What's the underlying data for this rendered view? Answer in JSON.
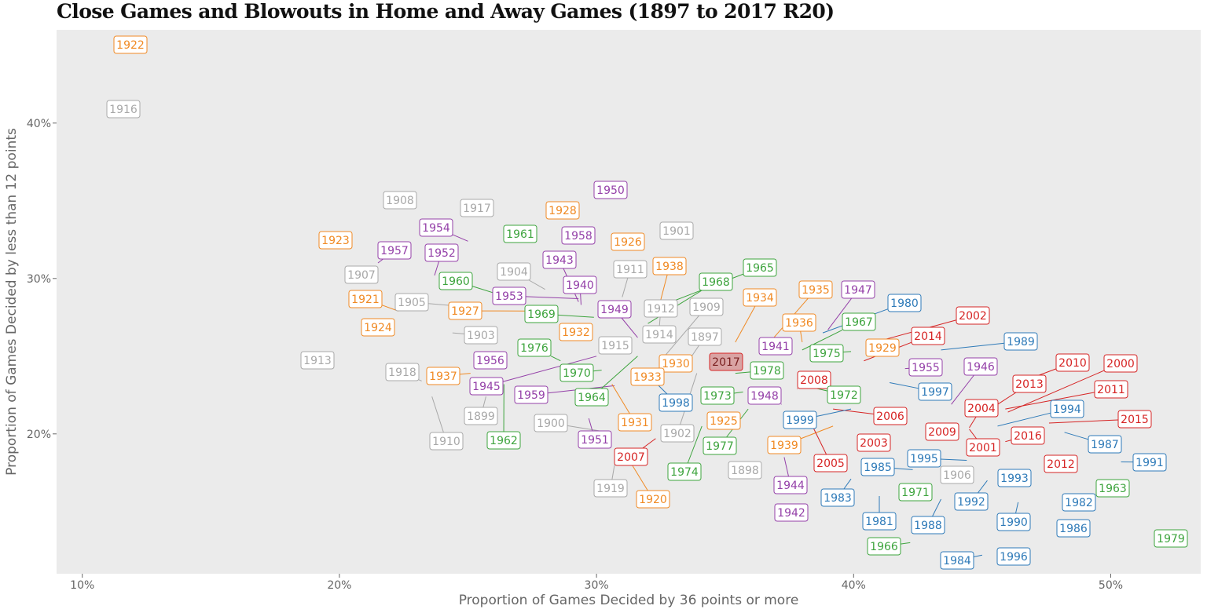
{
  "colors": {
    "panel_bg": "#ebebeb",
    "highlight_fill": "#d9a3a3",
    "eras": {
      "early": "#a8a8a8",
      "interwar": "#f08a24",
      "mid": "#9440a8",
      "sixties_seventies": "#3ea43e",
      "eighties_nineties": "#2e7ab8",
      "modern": "#d62424"
    }
  },
  "chart_data": {
    "type": "scatter",
    "title": "Close Games and Blowouts in Home and Away Games (1897 to 2017 R20)",
    "xlabel": "Proportion of Games Decided by 36 points or more",
    "ylabel": "Proportion of Games Decided by less than 12 points",
    "xlim": [
      0.09,
      0.535
    ],
    "ylim": [
      0.11,
      0.46
    ],
    "xticks": [
      0.1,
      0.2,
      0.3,
      0.4,
      0.5
    ],
    "xtick_labels": [
      "10%",
      "20%",
      "30%",
      "40%",
      "50%"
    ],
    "yticks": [
      0.2,
      0.3,
      0.4
    ],
    "ytick_labels": [
      "20%",
      "30%",
      "40%"
    ],
    "grid": false,
    "legend": "none",
    "highlight": "2017",
    "points": [
      {
        "label": "1922",
        "era": "interwar",
        "x": 0.12,
        "y": 0.45
      },
      {
        "label": "1916",
        "era": "early",
        "x": 0.117,
        "y": 0.409
      },
      {
        "label": "1908",
        "era": "early",
        "x": 0.224,
        "y": 0.352
      },
      {
        "label": "1917",
        "era": "early",
        "x": 0.254,
        "y": 0.346
      },
      {
        "label": "1928",
        "era": "interwar",
        "x": 0.288,
        "y": 0.344
      },
      {
        "label": "1950",
        "era": "mid",
        "x": 0.307,
        "y": 0.358
      },
      {
        "label": "1923",
        "era": "interwar",
        "x": 0.199,
        "y": 0.326
      },
      {
        "label": "1954",
        "era": "mid",
        "x": 0.25,
        "y": 0.324
      },
      {
        "label": "1961",
        "era": "sixties_seventies",
        "x": 0.277,
        "y": 0.33
      },
      {
        "label": "1958",
        "era": "mid",
        "x": 0.297,
        "y": 0.33
      },
      {
        "label": "1926",
        "era": "interwar",
        "x": 0.313,
        "y": 0.323
      },
      {
        "label": "1901",
        "era": "early",
        "x": 0.332,
        "y": 0.332
      },
      {
        "label": "1957",
        "era": "mid",
        "x": 0.215,
        "y": 0.31
      },
      {
        "label": "1952",
        "era": "mid",
        "x": 0.237,
        "y": 0.302
      },
      {
        "label": "1907",
        "era": "early",
        "x": 0.209,
        "y": 0.3
      },
      {
        "label": "1943",
        "era": "mid",
        "x": 0.293,
        "y": 0.285
      },
      {
        "label": "1904",
        "era": "early",
        "x": 0.28,
        "y": 0.293
      },
      {
        "label": "1911",
        "era": "early",
        "x": 0.31,
        "y": 0.288
      },
      {
        "label": "1938",
        "era": "interwar",
        "x": 0.324,
        "y": 0.28
      },
      {
        "label": "1965",
        "era": "sixties_seventies",
        "x": 0.326,
        "y": 0.283
      },
      {
        "label": "1960",
        "era": "sixties_seventies",
        "x": 0.271,
        "y": 0.285
      },
      {
        "label": "1940",
        "era": "mid",
        "x": 0.294,
        "y": 0.283
      },
      {
        "label": "1968",
        "era": "sixties_seventies",
        "x": 0.32,
        "y": 0.271
      },
      {
        "label": "1953",
        "era": "mid",
        "x": 0.293,
        "y": 0.287
      },
      {
        "label": "1921",
        "era": "interwar",
        "x": 0.223,
        "y": 0.279
      },
      {
        "label": "1905",
        "era": "early",
        "x": 0.248,
        "y": 0.282
      },
      {
        "label": "1927",
        "era": "interwar",
        "x": 0.281,
        "y": 0.279
      },
      {
        "label": "1969",
        "era": "sixties_seventies",
        "x": 0.299,
        "y": 0.275
      },
      {
        "label": "1949",
        "era": "mid",
        "x": 0.316,
        "y": 0.262
      },
      {
        "label": "1912",
        "era": "early",
        "x": 0.324,
        "y": 0.26
      },
      {
        "label": "1909",
        "era": "early",
        "x": 0.327,
        "y": 0.251
      },
      {
        "label": "1935",
        "era": "interwar",
        "x": 0.369,
        "y": 0.262
      },
      {
        "label": "1947",
        "era": "mid",
        "x": 0.39,
        "y": 0.267
      },
      {
        "label": "1934",
        "era": "interwar",
        "x": 0.354,
        "y": 0.259
      },
      {
        "label": "1980",
        "era": "eighties_nineties",
        "x": 0.388,
        "y": 0.265
      },
      {
        "label": "1924",
        "era": "interwar",
        "x": 0.214,
        "y": 0.274
      },
      {
        "label": "1903",
        "era": "early",
        "x": 0.244,
        "y": 0.265
      },
      {
        "label": "1932",
        "era": "interwar",
        "x": 0.291,
        "y": 0.267
      },
      {
        "label": "1914",
        "era": "early",
        "x": 0.322,
        "y": 0.255
      },
      {
        "label": "1897",
        "era": "early",
        "x": 0.335,
        "y": 0.245
      },
      {
        "label": "1936",
        "era": "interwar",
        "x": 0.38,
        "y": 0.259
      },
      {
        "label": "1967",
        "era": "sixties_seventies",
        "x": 0.38,
        "y": 0.254
      },
      {
        "label": "2002",
        "era": "modern",
        "x": 0.406,
        "y": 0.258
      },
      {
        "label": "2014",
        "era": "modern",
        "x": 0.404,
        "y": 0.247
      },
      {
        "label": "1989",
        "era": "eighties_nineties",
        "x": 0.434,
        "y": 0.254
      },
      {
        "label": "1913",
        "era": "early",
        "x": 0.187,
        "y": 0.249
      },
      {
        "label": "1976",
        "era": "sixties_seventies",
        "x": 0.286,
        "y": 0.247
      },
      {
        "label": "1915",
        "era": "early",
        "x": 0.308,
        "y": 0.259
      },
      {
        "label": "1941",
        "era": "mid",
        "x": 0.372,
        "y": 0.252
      },
      {
        "label": "1975",
        "era": "sixties_seventies",
        "x": 0.399,
        "y": 0.253
      },
      {
        "label": "1929",
        "era": "interwar",
        "x": 0.407,
        "y": 0.252
      },
      {
        "label": "1956",
        "era": "mid",
        "x": 0.257,
        "y": 0.249
      },
      {
        "label": "1930",
        "era": "interwar",
        "x": 0.331,
        "y": 0.248
      },
      {
        "label": "2017",
        "era": "modern",
        "x": 0.347,
        "y": 0.248
      },
      {
        "label": "1978",
        "era": "sixties_seventies",
        "x": 0.354,
        "y": 0.239
      },
      {
        "label": "1955",
        "era": "mid",
        "x": 0.42,
        "y": 0.242
      },
      {
        "label": "1946",
        "era": "mid",
        "x": 0.438,
        "y": 0.219
      },
      {
        "label": "2010",
        "era": "modern",
        "x": 0.466,
        "y": 0.234
      },
      {
        "label": "2000",
        "era": "modern",
        "x": 0.46,
        "y": 0.214
      },
      {
        "label": "1918",
        "era": "early",
        "x": 0.232,
        "y": 0.234
      },
      {
        "label": "1937",
        "era": "interwar",
        "x": 0.251,
        "y": 0.239
      },
      {
        "label": "1970",
        "era": "sixties_seventies",
        "x": 0.302,
        "y": 0.241
      },
      {
        "label": "1933",
        "era": "interwar",
        "x": 0.317,
        "y": 0.239
      },
      {
        "label": "2008",
        "era": "modern",
        "x": 0.378,
        "y": 0.229
      },
      {
        "label": "2013",
        "era": "modern",
        "x": 0.456,
        "y": 0.219
      },
      {
        "label": "2011",
        "era": "modern",
        "x": 0.459,
        "y": 0.216
      },
      {
        "label": "1945",
        "era": "mid",
        "x": 0.3,
        "y": 0.25
      },
      {
        "label": "1959",
        "era": "mid",
        "x": 0.307,
        "y": 0.231
      },
      {
        "label": "1964",
        "era": "sixties_seventies",
        "x": 0.316,
        "y": 0.25
      },
      {
        "label": "1972",
        "era": "sixties_seventies",
        "x": 0.381,
        "y": 0.231
      },
      {
        "label": "1997",
        "era": "eighties_nineties",
        "x": 0.414,
        "y": 0.233
      },
      {
        "label": "1948",
        "era": "mid",
        "x": 0.372,
        "y": 0.219
      },
      {
        "label": "1973",
        "era": "sixties_seventies",
        "x": 0.357,
        "y": 0.227
      },
      {
        "label": "1998",
        "era": "eighties_nineties",
        "x": 0.323,
        "y": 0.233
      },
      {
        "label": "2004",
        "era": "modern",
        "x": 0.445,
        "y": 0.204
      },
      {
        "label": "1994",
        "era": "eighties_nineties",
        "x": 0.456,
        "y": 0.205
      },
      {
        "label": "2015",
        "era": "modern",
        "x": 0.476,
        "y": 0.207
      },
      {
        "label": "1899",
        "era": "early",
        "x": 0.257,
        "y": 0.224
      },
      {
        "label": "1931",
        "era": "interwar",
        "x": 0.306,
        "y": 0.232
      },
      {
        "label": "1925",
        "era": "interwar",
        "x": 0.345,
        "y": 0.217
      },
      {
        "label": "2006",
        "era": "modern",
        "x": 0.392,
        "y": 0.216
      },
      {
        "label": "1999",
        "era": "eighties_nineties",
        "x": 0.399,
        "y": 0.216
      },
      {
        "label": "1900",
        "era": "early",
        "x": 0.301,
        "y": 0.202
      },
      {
        "label": "1902",
        "era": "early",
        "x": 0.339,
        "y": 0.239
      },
      {
        "label": "2009",
        "era": "modern",
        "x": 0.441,
        "y": 0.201
      },
      {
        "label": "2001",
        "era": "modern",
        "x": 0.445,
        "y": 0.203
      },
      {
        "label": "1910",
        "era": "early",
        "x": 0.236,
        "y": 0.224
      },
      {
        "label": "1962",
        "era": "sixties_seventies",
        "x": 0.264,
        "y": 0.232
      },
      {
        "label": "1951",
        "era": "mid",
        "x": 0.297,
        "y": 0.21
      },
      {
        "label": "1977",
        "era": "sixties_seventies",
        "x": 0.359,
        "y": 0.216
      },
      {
        "label": "1939",
        "era": "interwar",
        "x": 0.392,
        "y": 0.205
      },
      {
        "label": "2003",
        "era": "modern",
        "x": 0.408,
        "y": 0.197
      },
      {
        "label": "2016",
        "era": "modern",
        "x": 0.459,
        "y": 0.195
      },
      {
        "label": "1987",
        "era": "eighties_nineties",
        "x": 0.482,
        "y": 0.201
      },
      {
        "label": "1991",
        "era": "eighties_nineties",
        "x": 0.504,
        "y": 0.182
      },
      {
        "label": "2007",
        "era": "modern",
        "x": 0.323,
        "y": 0.197
      },
      {
        "label": "2005",
        "era": "modern",
        "x": 0.384,
        "y": 0.205
      },
      {
        "label": "1995",
        "era": "eighties_nineties",
        "x": 0.444,
        "y": 0.183
      },
      {
        "label": "2012",
        "era": "modern",
        "x": 0.478,
        "y": 0.181
      },
      {
        "label": "1974",
        "era": "sixties_seventies",
        "x": 0.341,
        "y": 0.205
      },
      {
        "label": "1898",
        "era": "early",
        "x": 0.356,
        "y": 0.185
      },
      {
        "label": "1985",
        "era": "eighties_nineties",
        "x": 0.423,
        "y": 0.177
      },
      {
        "label": "1906",
        "era": "early",
        "x": 0.438,
        "y": 0.177
      },
      {
        "label": "1993",
        "era": "eighties_nineties",
        "x": 0.465,
        "y": 0.176
      },
      {
        "label": "1919",
        "era": "early",
        "x": 0.307,
        "y": 0.18
      },
      {
        "label": "1920",
        "era": "interwar",
        "x": 0.312,
        "y": 0.185
      },
      {
        "label": "1944",
        "era": "mid",
        "x": 0.373,
        "y": 0.185
      },
      {
        "label": "1963",
        "era": "sixties_seventies",
        "x": 0.505,
        "y": 0.171
      },
      {
        "label": "1971",
        "era": "sixties_seventies",
        "x": 0.428,
        "y": 0.166
      },
      {
        "label": "1983",
        "era": "eighties_nineties",
        "x": 0.399,
        "y": 0.171
      },
      {
        "label": "1992",
        "era": "eighties_nineties",
        "x": 0.452,
        "y": 0.17
      },
      {
        "label": "1982",
        "era": "eighties_nineties",
        "x": 0.485,
        "y": 0.159
      },
      {
        "label": "1942",
        "era": "mid",
        "x": 0.378,
        "y": 0.159
      },
      {
        "label": "1981",
        "era": "eighties_nineties",
        "x": 0.41,
        "y": 0.16
      },
      {
        "label": "1988",
        "era": "eighties_nineties",
        "x": 0.434,
        "y": 0.158
      },
      {
        "label": "1990",
        "era": "eighties_nineties",
        "x": 0.464,
        "y": 0.156
      },
      {
        "label": "1986",
        "era": "eighties_nineties",
        "x": 0.481,
        "y": 0.142
      },
      {
        "label": "1966",
        "era": "sixties_seventies",
        "x": 0.422,
        "y": 0.13
      },
      {
        "label": "1979",
        "era": "sixties_seventies",
        "x": 0.518,
        "y": 0.136
      },
      {
        "label": "1984",
        "era": "eighties_nineties",
        "x": 0.45,
        "y": 0.122
      },
      {
        "label": "1996",
        "era": "eighties_nineties",
        "x": 0.469,
        "y": 0.124
      }
    ]
  }
}
